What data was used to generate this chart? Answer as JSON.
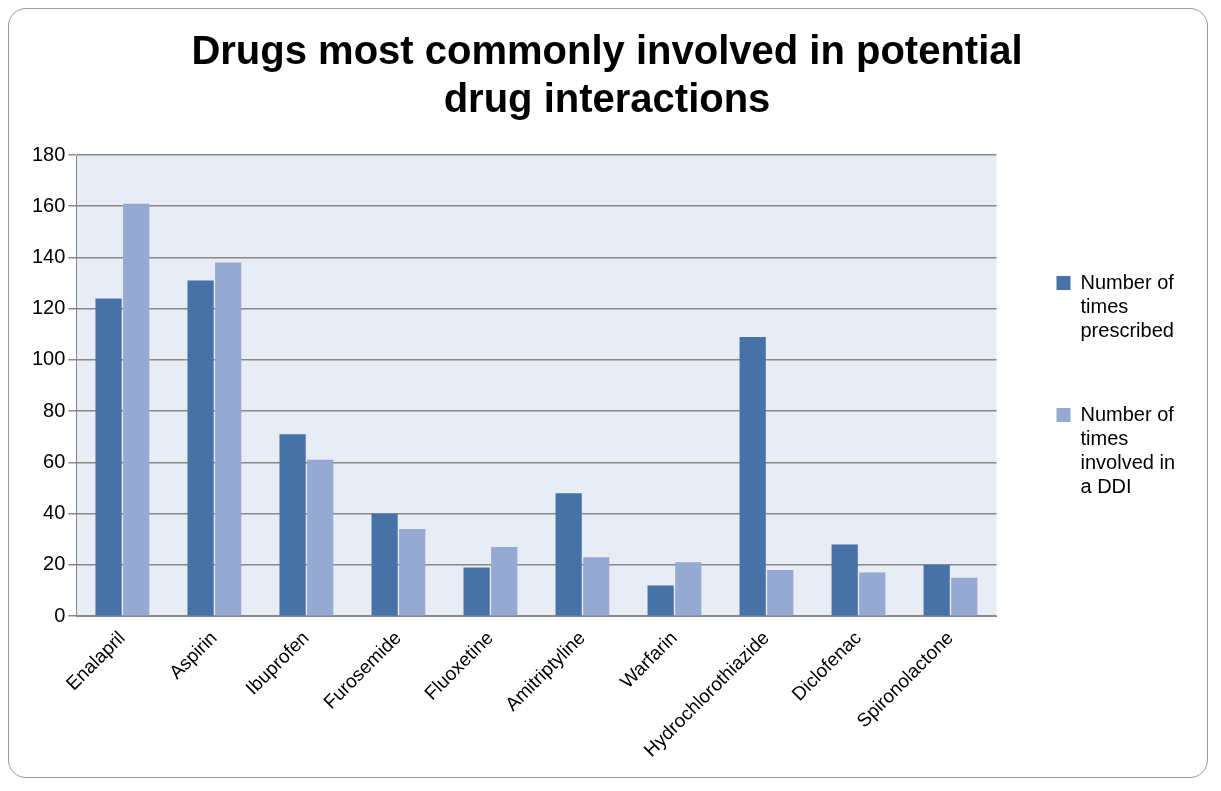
{
  "chart_data": {
    "type": "bar",
    "title": "Drugs most commonly involved in potential drug interactions",
    "categories": [
      "Enalapril",
      "Aspirin",
      "Ibuprofen",
      "Furosemide",
      "Fluoxetine",
      "Amitriptyline",
      "Warfarin",
      "Hydrochlorothiazide",
      "Diclofenac",
      "Spironolactone"
    ],
    "series": [
      {
        "name": "Number of times prescribed",
        "color": "#4672a8",
        "values": [
          124,
          131,
          71,
          40,
          19,
          48,
          12,
          109,
          28,
          20
        ]
      },
      {
        "name": "Number of times involved in a DDI",
        "color": "#95a9d3",
        "values": [
          161,
          138,
          61,
          34,
          27,
          23,
          21,
          18,
          17,
          15
        ]
      }
    ],
    "ylim": [
      0,
      180
    ],
    "yticks": [
      0,
      20,
      40,
      60,
      80,
      100,
      120,
      140,
      160,
      180
    ],
    "grid": "y",
    "legend": "right"
  }
}
